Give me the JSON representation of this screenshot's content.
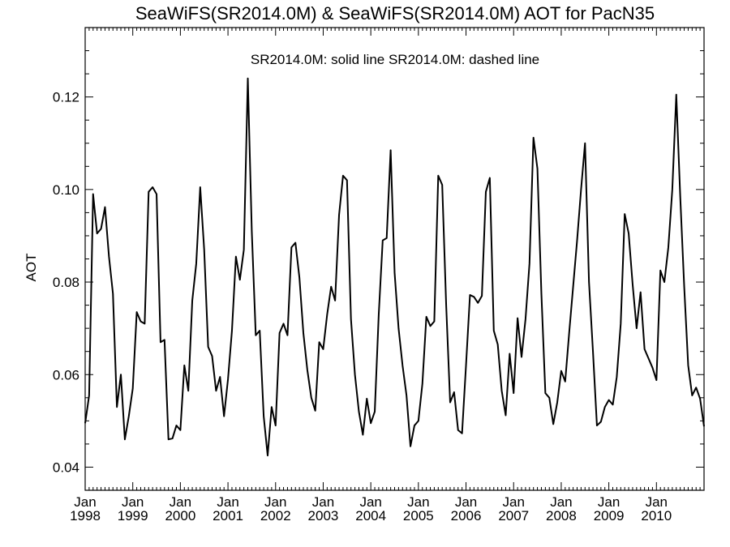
{
  "chart_data": {
    "type": "line",
    "title": "SeaWiFS(SR2014.0M) & SeaWiFS(SR2014.0M)  AOT for PacN35",
    "annotation": "SR2014.0M: solid line   SR2014.0M: dashed line",
    "ylabel": "AOT",
    "xlabel": "",
    "xlim": [
      "1998-01",
      "2011-01"
    ],
    "ylim": [
      0.035,
      0.135
    ],
    "yticks": [
      0.04,
      0.06,
      0.08,
      0.1,
      0.12
    ],
    "ytick_labels": [
      "0.04",
      "0.06",
      "0.08",
      "0.10",
      "0.12"
    ],
    "xticks": [
      {
        "month": "Jan",
        "year": "1998"
      },
      {
        "month": "Jan",
        "year": "1999"
      },
      {
        "month": "Jan",
        "year": "2000"
      },
      {
        "month": "Jan",
        "year": "2001"
      },
      {
        "month": "Jan",
        "year": "2002"
      },
      {
        "month": "Jan",
        "year": "2003"
      },
      {
        "month": "Jan",
        "year": "2004"
      },
      {
        "month": "Jan",
        "year": "2005"
      },
      {
        "month": "Jan",
        "year": "2006"
      },
      {
        "month": "Jan",
        "year": "2007"
      },
      {
        "month": "Jan",
        "year": "2008"
      },
      {
        "month": "Jan",
        "year": "2009"
      },
      {
        "month": "Jan",
        "year": "2010"
      }
    ],
    "grid": false,
    "series": [
      {
        "style": "solid",
        "color": "#000000",
        "start": "1998-01",
        "frequency": "monthly",
        "values": [
          0.0495,
          0.0555,
          0.099,
          0.0905,
          0.0915,
          0.0962,
          0.0855,
          0.0775,
          0.053,
          0.06,
          0.046,
          0.051,
          0.057,
          0.0735,
          0.0715,
          0.071,
          0.0995,
          0.1005,
          0.099,
          0.067,
          0.0675,
          0.046,
          0.0462,
          0.049,
          0.048,
          0.062,
          0.0565,
          0.076,
          0.084,
          0.1005,
          0.087,
          0.066,
          0.064,
          0.0565,
          0.0595,
          0.051,
          0.059,
          0.0695,
          0.0855,
          0.0805,
          0.087,
          0.124,
          0.091,
          0.0685,
          0.0695,
          0.051,
          0.0425,
          0.053,
          0.049,
          0.069,
          0.071,
          0.0685,
          0.0875,
          0.0885,
          0.081,
          0.069,
          0.061,
          0.055,
          0.0522,
          0.067,
          0.0655,
          0.073,
          0.079,
          0.076,
          0.0945,
          0.103,
          0.102,
          0.072,
          0.06,
          0.052,
          0.047,
          0.0548,
          0.0495,
          0.052,
          0.073,
          0.089,
          0.0895,
          0.1085,
          0.082,
          0.07,
          0.062,
          0.0555,
          0.0445,
          0.049,
          0.05,
          0.058,
          0.0725,
          0.0705,
          0.0715,
          0.103,
          0.101,
          0.075,
          0.054,
          0.0562,
          0.048,
          0.0473,
          0.062,
          0.0772,
          0.0768,
          0.0755,
          0.077,
          0.0995,
          0.1025,
          0.0695,
          0.0665,
          0.0565,
          0.0512,
          0.0645,
          0.056,
          0.0722,
          0.0638,
          0.072,
          0.084,
          0.1112,
          0.1045,
          0.0775,
          0.056,
          0.055,
          0.0493,
          0.054,
          0.0608,
          0.0585,
          0.069,
          0.079,
          0.089,
          0.1,
          0.11,
          0.08,
          0.065,
          0.049,
          0.0498,
          0.053,
          0.0545,
          0.0535,
          0.0595,
          0.071,
          0.0947,
          0.0905,
          0.0795,
          0.07,
          0.0778,
          0.0655,
          0.0635,
          0.0615,
          0.0588,
          0.0825,
          0.08,
          0.0875,
          0.1,
          0.1205,
          0.0985,
          0.079,
          0.062,
          0.0555,
          0.0572,
          0.0548,
          0.0488
        ]
      }
    ]
  }
}
